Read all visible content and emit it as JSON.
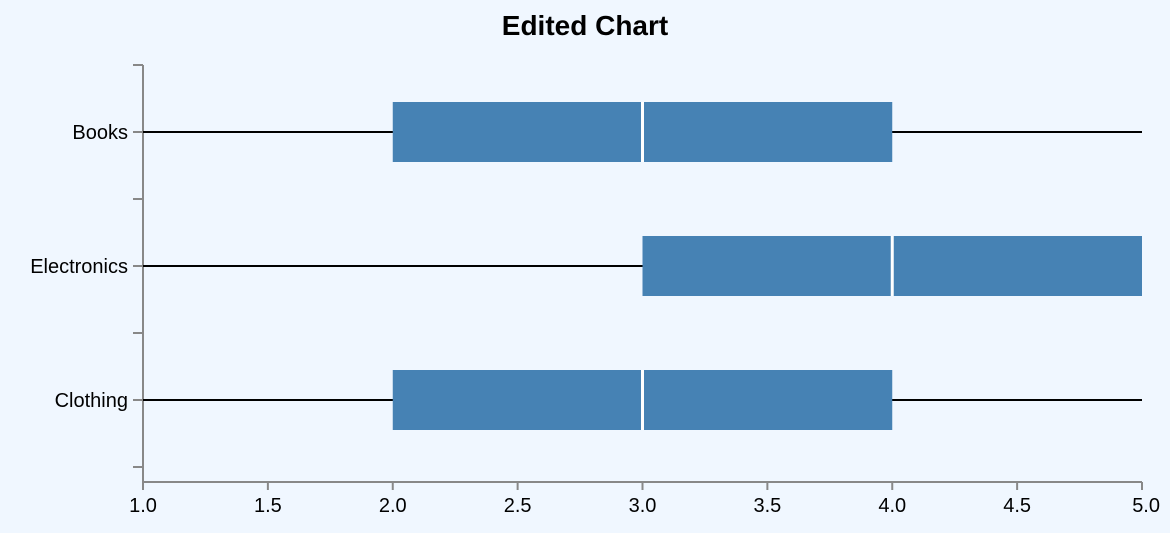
{
  "chart_data": {
    "type": "box",
    "title": "Edited Chart",
    "xlabel": "",
    "ylabel": "",
    "orientation": "horizontal",
    "xlim": [
      1.0,
      5.0
    ],
    "x_ticks": [
      "1.0",
      "1.5",
      "2.0",
      "2.5",
      "3.0",
      "3.5",
      "4.0",
      "4.5",
      "5.0"
    ],
    "categories": [
      "Books",
      "Electronics",
      "Clothing"
    ],
    "boxes": [
      {
        "category": "Books",
        "min": 1.0,
        "q1": 2.0,
        "median": 3.0,
        "q3": 4.0,
        "max": 5.0
      },
      {
        "category": "Electronics",
        "min": 1.0,
        "q1": 3.0,
        "median": 4.0,
        "q3": 5.0,
        "max": 5.0
      },
      {
        "category": "Clothing",
        "min": 1.0,
        "q1": 2.0,
        "median": 3.0,
        "q3": 4.0,
        "max": 5.0
      }
    ],
    "box_color": "#4682b4",
    "median_color": "#ffffff",
    "whisker_color": "#000000",
    "background_color": "#f0f7ff",
    "grid": false,
    "legend": "none"
  }
}
